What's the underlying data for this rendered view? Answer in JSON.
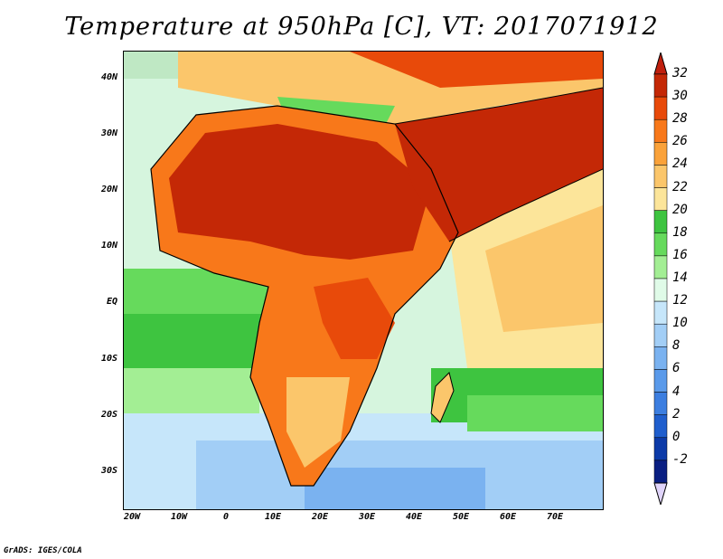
{
  "title": "Temperature at 950hPa [C], VT: 2017071912",
  "credit": "GrADS: IGES/COLA",
  "map": {
    "projection": "lat-lon",
    "lon_range": [
      -22,
      80
    ],
    "lat_range": [
      -37,
      46
    ],
    "y_axis_labels": [
      {
        "text": "40N",
        "lat": 40
      },
      {
        "text": "30N",
        "lat": 30
      },
      {
        "text": "20N",
        "lat": 20
      },
      {
        "text": "10N",
        "lat": 10
      },
      {
        "text": "EQ",
        "lat": 0
      },
      {
        "text": "10S",
        "lat": -10
      },
      {
        "text": "20S",
        "lat": -20
      },
      {
        "text": "30S",
        "lat": -30
      }
    ],
    "x_axis_labels": [
      {
        "text": "20W",
        "lon": -20
      },
      {
        "text": "10W",
        "lon": -10
      },
      {
        "text": "0",
        "lon": 0
      },
      {
        "text": "10E",
        "lon": 10
      },
      {
        "text": "20E",
        "lon": 20
      },
      {
        "text": "30E",
        "lon": 30
      },
      {
        "text": "40E",
        "lon": 40
      },
      {
        "text": "50E",
        "lon": 50
      },
      {
        "text": "60E",
        "lon": 60
      },
      {
        "text": "70E",
        "lon": 70
      }
    ]
  },
  "colorbar": {
    "levels": [
      32,
      30,
      28,
      26,
      24,
      22,
      20,
      18,
      16,
      14,
      12,
      10,
      8,
      6,
      4,
      2,
      0,
      -2
    ],
    "colors": [
      "#c42806",
      "#e84a0a",
      "#f8781a",
      "#faa23a",
      "#fbc66b",
      "#fce59a",
      "#3ec440",
      "#66da5c",
      "#a3ee94",
      "#e0fbe8",
      "#c6e6fa",
      "#a2cef6",
      "#7ab2f0",
      "#5a9aea",
      "#3c7ee0",
      "#1f5ecd",
      "#0c3aa8",
      "#0a1f82"
    ],
    "top_triangle_color": "#c01f0d",
    "bottom_triangle_color": "#e0d4fa"
  }
}
